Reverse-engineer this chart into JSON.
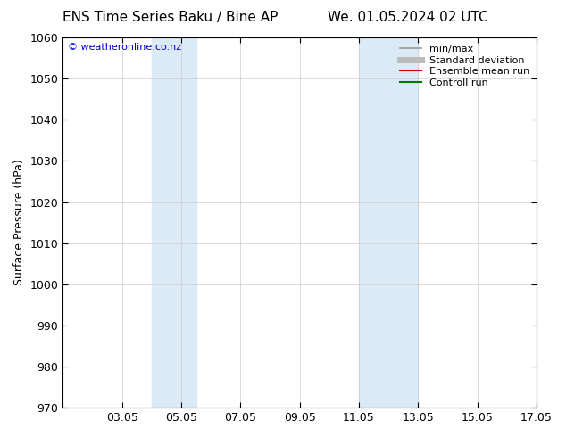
{
  "title_left": "ENS Time Series Baku / Bine AP",
  "title_right": "We. 01.05.2024 02 UTC",
  "ylabel": "Surface Pressure (hPa)",
  "ylim": [
    970,
    1060
  ],
  "yticks": [
    970,
    980,
    990,
    1000,
    1010,
    1020,
    1030,
    1040,
    1050,
    1060
  ],
  "xlim": [
    1,
    17
  ],
  "xtick_labels": [
    "03.05",
    "05.05",
    "07.05",
    "09.05",
    "11.05",
    "13.05",
    "15.05",
    "17.05"
  ],
  "xtick_positions": [
    3,
    5,
    7,
    9,
    11,
    13,
    15,
    17
  ],
  "shaded_regions": [
    {
      "xmin": 4.0,
      "xmax": 5.5,
      "color": "#daeaf7"
    },
    {
      "xmin": 11.0,
      "xmax": 13.0,
      "color": "#daeaf7"
    }
  ],
  "watermark": "© weatheronline.co.nz",
  "watermark_color": "#0000cc",
  "legend_items": [
    {
      "label": "min/max",
      "color": "#999999",
      "lw": 1.2
    },
    {
      "label": "Standard deviation",
      "color": "#bbbbbb",
      "lw": 5
    },
    {
      "label": "Ensemble mean run",
      "color": "#cc0000",
      "lw": 1.5
    },
    {
      "label": "Controll run",
      "color": "#007700",
      "lw": 1.5
    }
  ],
  "bg_color": "#ffffff",
  "font_size": 9,
  "title_font_size": 11
}
